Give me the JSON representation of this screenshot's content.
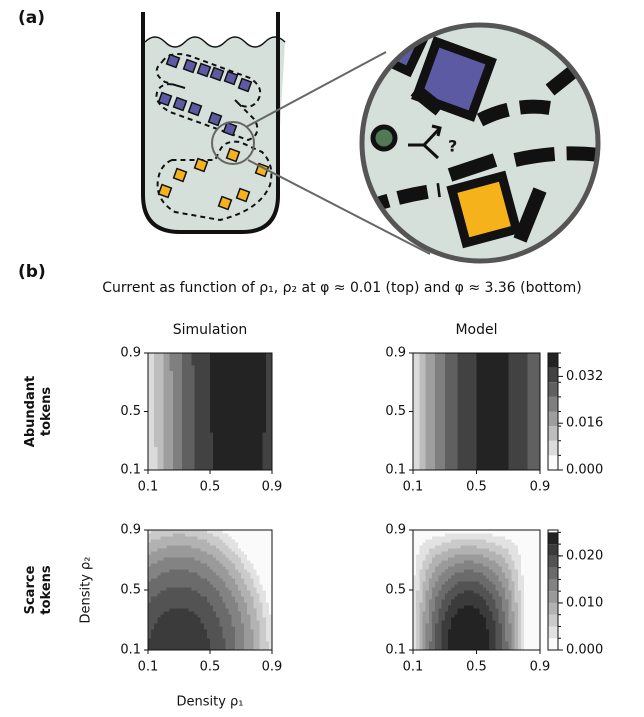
{
  "panel_a": {
    "label": "(a)",
    "question": "?"
  },
  "panel_b": {
    "label": "(b)",
    "title": "Current as function of ρ₁, ρ₂ at φ ≈ 0.01 (top) and φ ≈ 3.36 (bottom)",
    "xlabel": "Density ρ₁",
    "ylabel": "Density ρ₂"
  },
  "chart_data": [
    {
      "type": "contour",
      "column_title": "Simulation",
      "row_label": [
        "Abundant",
        "tokens"
      ],
      "xlim": [
        0.1,
        0.9
      ],
      "ylim": [
        0.1,
        0.9
      ],
      "xticks": [
        0.1,
        0.5,
        0.9
      ],
      "yticks": [
        0.1,
        0.5,
        0.9
      ]
    },
    {
      "type": "contour",
      "column_title": "Model",
      "xlim": [
        0.1,
        0.9
      ],
      "ylim": [
        0.1,
        0.9
      ],
      "xticks": [
        0.1,
        0.5,
        0.9
      ],
      "yticks": [
        0.1,
        0.5,
        0.9
      ],
      "colorbar": {
        "clim": [
          0,
          0.04
        ],
        "levels": [
          0,
          0.005,
          0.01,
          0.015,
          0.02,
          0.025,
          0.03,
          0.035,
          0.04
        ],
        "ticks": [
          {
            "value": 0,
            "label": "0.000"
          },
          {
            "value": 0.016,
            "label": "0.016"
          },
          0.032
        ]
      }
    },
    {
      "type": "contour",
      "row_label": [
        "Scarce",
        "tokens"
      ],
      "xlim": [
        0.1,
        0.9
      ],
      "ylim": [
        0.1,
        0.9
      ],
      "xticks": [
        0.1,
        0.5,
        0.9
      ],
      "yticks": [
        0.1,
        0.5,
        0.9
      ]
    },
    {
      "type": "contour",
      "xlim": [
        0.1,
        0.9
      ],
      "ylim": [
        0.1,
        0.9
      ],
      "xticks": [
        0.1,
        0.5,
        0.9
      ],
      "yticks": [
        0.1,
        0.5,
        0.9
      ],
      "colorbar": {
        "clim": [
          0,
          0.0255
        ],
        "levels": [
          0,
          0.0025,
          0.005,
          0.0075,
          0.01,
          0.0125,
          0.015,
          0.0175,
          0.02,
          0.0225,
          0.025
        ],
        "ticks": [
          {
            "value": 0,
            "label": "0.000"
          },
          {
            "value": 0.01,
            "label": "0.010"
          },
          {
            "value": 0.02,
            "label": "0.020"
          }
        ]
      }
    }
  ]
}
